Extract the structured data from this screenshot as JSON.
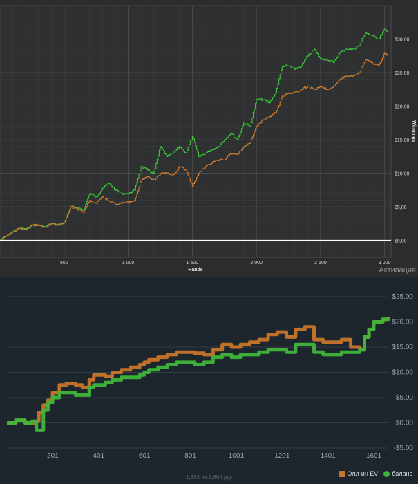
{
  "chart_data": [
    {
      "type": "line",
      "title": "",
      "xlabel": "Hands",
      "ylabel": "Winnings",
      "xlim": [
        0,
        3050
      ],
      "ylim": [
        -2.5,
        35
      ],
      "x_ticks": [
        500,
        1000,
        1500,
        2000,
        2500,
        3000
      ],
      "x_tick_labels": [
        "500",
        "1 000",
        "1 500",
        "2 000",
        "2 500",
        "3 000"
      ],
      "y_ticks": [
        0,
        5,
        10,
        15,
        20,
        25,
        30
      ],
      "y_tick_labels": [
        "$0,00",
        "$5,00",
        "$10,00",
        "$15,00",
        "$20,00",
        "$25,00",
        "$30,00"
      ],
      "grid": true,
      "series": [
        {
          "color": "#3ec43b",
          "x": [
            0,
            40,
            100,
            150,
            200,
            250,
            300,
            350,
            400,
            450,
            500,
            550,
            600,
            650,
            700,
            750,
            800,
            850,
            900,
            950,
            1000,
            1050,
            1100,
            1150,
            1200,
            1250,
            1300,
            1350,
            1400,
            1450,
            1500,
            1550,
            1600,
            1650,
            1700,
            1750,
            1800,
            1850,
            1900,
            1950,
            2000,
            2050,
            2100,
            2150,
            2200,
            2250,
            2300,
            2350,
            2400,
            2450,
            2500,
            2550,
            2600,
            2650,
            2700,
            2750,
            2800,
            2850,
            2900,
            2950,
            3000,
            3020
          ],
          "values": [
            0,
            0.6,
            1.3,
            1.8,
            1.6,
            2.3,
            2.3,
            2.0,
            2.5,
            2.3,
            2.6,
            5.0,
            4.9,
            4.5,
            7.0,
            6.5,
            7.8,
            8.5,
            7.5,
            7.0,
            7.0,
            7.5,
            11.0,
            10.5,
            10.0,
            14.0,
            12.5,
            13.0,
            14.0,
            13.0,
            15.5,
            12.5,
            13.0,
            13.5,
            14.0,
            15.0,
            16.0,
            15.0,
            17.5,
            17.0,
            21.0,
            21.0,
            20.5,
            22.0,
            26.0,
            26.0,
            25.5,
            26.0,
            27.5,
            28.5,
            27.0,
            27.0,
            26.5,
            28.0,
            28.5,
            28.5,
            29.0,
            31.0,
            30.5,
            30.0,
            31.5,
            31.0
          ]
        },
        {
          "color": "#d07a2e",
          "x": [
            0,
            40,
            100,
            150,
            200,
            250,
            300,
            350,
            400,
            450,
            500,
            550,
            600,
            650,
            700,
            750,
            800,
            850,
            900,
            950,
            1000,
            1050,
            1100,
            1150,
            1200,
            1250,
            1300,
            1350,
            1400,
            1450,
            1500,
            1550,
            1600,
            1650,
            1700,
            1750,
            1800,
            1850,
            1900,
            1950,
            2000,
            2050,
            2100,
            2150,
            2200,
            2250,
            2300,
            2350,
            2400,
            2450,
            2500,
            2550,
            2600,
            2650,
            2700,
            2750,
            2800,
            2850,
            2900,
            2950,
            3000,
            3020
          ],
          "values": [
            0,
            0.6,
            1.3,
            1.8,
            1.6,
            2.3,
            2.3,
            2.0,
            2.5,
            2.3,
            2.6,
            5.0,
            4.7,
            4.2,
            6.0,
            5.5,
            6.5,
            5.9,
            5.4,
            5.7,
            5.8,
            6.0,
            9.0,
            9.5,
            9.0,
            10.0,
            10.0,
            9.8,
            11.0,
            10.5,
            8.0,
            10.0,
            11.0,
            11.5,
            12.0,
            12.0,
            13.0,
            12.8,
            14.0,
            14.5,
            17.0,
            18.0,
            18.5,
            19.0,
            21.5,
            22.0,
            22.0,
            22.5,
            23.0,
            22.5,
            23.0,
            22.5,
            23.0,
            24.0,
            24.5,
            24.5,
            25.0,
            27.0,
            26.5,
            26.0,
            28.0,
            27.5
          ]
        },
        {
          "color": "#ffffff",
          "x": [
            0,
            3050
          ],
          "values": [
            0,
            0
          ]
        }
      ]
    },
    {
      "type": "line",
      "title": "",
      "xlabel": "",
      "ylabel": "",
      "xlim": [
        1,
        1664
      ],
      "ylim": [
        -5,
        25
      ],
      "x_ticks": [
        201,
        401,
        601,
        801,
        1001,
        1201,
        1401,
        1601
      ],
      "x_tick_labels": [
        "201",
        "401",
        "601",
        "801",
        "1001",
        "1201",
        "1401",
        "1601"
      ],
      "y_ticks": [
        -5,
        0,
        5,
        10,
        15,
        20,
        25
      ],
      "y_tick_labels": [
        "-$5.00",
        "$0.00",
        "$5.00",
        "$10.00",
        "$15.00",
        "$20.00",
        "$25.00"
      ],
      "grid": true,
      "legend_position": "bottom-right",
      "series": [
        {
          "name": "Олл-ин EV",
          "color": "#c8742a",
          "x": [
            1,
            40,
            80,
            120,
            140,
            160,
            180,
            200,
            230,
            260,
            300,
            330,
            360,
            380,
            400,
            430,
            460,
            500,
            540,
            580,
            600,
            620,
            660,
            700,
            740,
            780,
            820,
            860,
            900,
            940,
            980,
            1020,
            1060,
            1100,
            1140,
            1180,
            1220,
            1260,
            1300,
            1340,
            1380,
            1420,
            1460,
            1500,
            1540,
            1560,
            1580,
            1600,
            1640,
            1664
          ],
          "values": [
            0,
            0.5,
            0,
            0.3,
            2,
            3.5,
            4.5,
            6,
            7.5,
            7.8,
            7.5,
            7.0,
            8.5,
            9.5,
            9.5,
            9.2,
            10,
            10.5,
            11,
            11.5,
            12,
            12.5,
            13,
            13.5,
            14.0,
            14.0,
            13.8,
            13.5,
            14.5,
            15.5,
            15.0,
            15.5,
            16.0,
            16.5,
            17.5,
            18.0,
            17.0,
            18.5,
            19.0,
            16.5,
            16.0,
            16.0,
            16.5,
            15.0,
            14.5,
            17.0,
            18.5,
            20.0,
            20.5,
            20.5
          ]
        },
        {
          "name": "баланс",
          "color": "#3fb53a",
          "x": [
            1,
            40,
            80,
            110,
            130,
            160,
            180,
            200,
            230,
            260,
            300,
            330,
            360,
            380,
            400,
            430,
            460,
            500,
            540,
            580,
            600,
            620,
            660,
            700,
            740,
            780,
            820,
            860,
            900,
            940,
            980,
            1020,
            1060,
            1100,
            1140,
            1180,
            1220,
            1260,
            1300,
            1340,
            1380,
            1420,
            1460,
            1500,
            1540,
            1560,
            1580,
            1600,
            1640,
            1664
          ],
          "values": [
            0,
            0.5,
            0,
            0.3,
            -1.5,
            2.5,
            4,
            5,
            6,
            6,
            5.5,
            5.5,
            7.0,
            7.5,
            7.5,
            8.0,
            8.5,
            9.0,
            9.0,
            9.5,
            10.0,
            10.5,
            11.0,
            11.5,
            12.0,
            12.0,
            11.5,
            12.0,
            13.0,
            13.5,
            13.0,
            13.5,
            13.5,
            14.0,
            14.5,
            14.5,
            14.0,
            15.5,
            15.5,
            14.0,
            13.5,
            13.5,
            14.0,
            14.0,
            14.5,
            17.0,
            18.5,
            20.0,
            20.5,
            21.0
          ]
        }
      ]
    }
  ],
  "watermark": "Активация",
  "footer": "1,664 из 1,664 рук"
}
